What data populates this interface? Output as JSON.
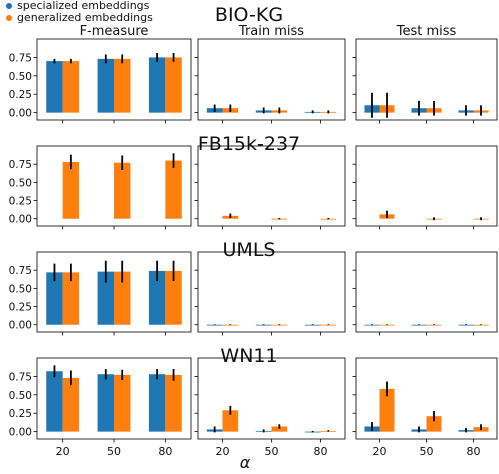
{
  "colors": {
    "specialized": "#1f77b4",
    "generalized": "#ff7f0e"
  },
  "legend": [
    {
      "label": "specialized embeddings",
      "color": "#1f77b4"
    },
    {
      "label": "generalized embeddings",
      "color": "#ff7f0e"
    }
  ],
  "col_titles": [
    "F-measure",
    "Train miss",
    "Test miss"
  ],
  "xlabel": "α",
  "chart_data": {
    "type": "bar",
    "categories": [
      "20",
      "50",
      "80"
    ],
    "ylim": [
      -0.1,
      1.0
    ],
    "yticks": [
      "0.00",
      "0.25",
      "0.50",
      "0.75"
    ],
    "grid": false,
    "legend_position": "top-left",
    "rows": [
      {
        "dataset": "BIO-KG",
        "panels": [
          {
            "metric": "F-measure",
            "series": [
              {
                "name": "specialized embeddings",
                "values": [
                  0.7,
                  0.73,
                  0.75
                ],
                "errors": [
                  0.03,
                  0.06,
                  0.06
                ]
              },
              {
                "name": "generalized embeddings",
                "values": [
                  0.7,
                  0.73,
                  0.75
                ],
                "errors": [
                  0.03,
                  0.06,
                  0.06
                ]
              }
            ]
          },
          {
            "metric": "Train miss",
            "series": [
              {
                "name": "specialized embeddings",
                "values": [
                  0.06,
                  0.03,
                  0.01
                ],
                "errors": [
                  0.05,
                  0.04,
                  0.02
                ]
              },
              {
                "name": "generalized embeddings",
                "values": [
                  0.06,
                  0.03,
                  0.01
                ],
                "errors": [
                  0.05,
                  0.04,
                  0.02
                ]
              }
            ]
          },
          {
            "metric": "Test miss",
            "series": [
              {
                "name": "specialized embeddings",
                "values": [
                  0.1,
                  0.06,
                  0.03
                ],
                "errors": [
                  0.17,
                  0.1,
                  0.07
                ]
              },
              {
                "name": "generalized embeddings",
                "values": [
                  0.1,
                  0.06,
                  0.03
                ],
                "errors": [
                  0.17,
                  0.1,
                  0.07
                ]
              }
            ]
          }
        ]
      },
      {
        "dataset": "FB15k-237",
        "panels": [
          {
            "metric": "F-measure",
            "series": [
              {
                "name": "specialized embeddings",
                "values": [
                  null,
                  null,
                  null
                ],
                "errors": [
                  0,
                  0,
                  0
                ]
              },
              {
                "name": "generalized embeddings",
                "values": [
                  0.78,
                  0.77,
                  0.8
                ],
                "errors": [
                  0.1,
                  0.1,
                  0.1
                ]
              }
            ]
          },
          {
            "metric": "Train miss",
            "series": [
              {
                "name": "specialized embeddings",
                "values": [
                  null,
                  null,
                  null
                ],
                "errors": [
                  0,
                  0,
                  0
                ]
              },
              {
                "name": "generalized embeddings",
                "values": [
                  0.04,
                  0.0,
                  0.0
                ],
                "errors": [
                  0.03,
                  0.01,
                  0.01
                ]
              }
            ]
          },
          {
            "metric": "Test miss",
            "series": [
              {
                "name": "specialized embeddings",
                "values": [
                  null,
                  null,
                  null
                ],
                "errors": [
                  0,
                  0,
                  0
                ]
              },
              {
                "name": "generalized embeddings",
                "values": [
                  0.06,
                  0.0,
                  0.0
                ],
                "errors": [
                  0.05,
                  0.02,
                  0.02
                ]
              }
            ]
          }
        ]
      },
      {
        "dataset": "UMLS",
        "panels": [
          {
            "metric": "F-measure",
            "series": [
              {
                "name": "specialized embeddings",
                "values": [
                  0.72,
                  0.73,
                  0.74
                ],
                "errors": [
                  0.12,
                  0.15,
                  0.14
                ]
              },
              {
                "name": "generalized embeddings",
                "values": [
                  0.72,
                  0.73,
                  0.74
                ],
                "errors": [
                  0.12,
                  0.15,
                  0.14
                ]
              }
            ]
          },
          {
            "metric": "Train miss",
            "series": [
              {
                "name": "specialized embeddings",
                "values": [
                  0.0,
                  0.0,
                  0.0
                ],
                "errors": [
                  0.005,
                  0.005,
                  0.005
                ]
              },
              {
                "name": "generalized embeddings",
                "values": [
                  0.0,
                  0.0,
                  0.0
                ],
                "errors": [
                  0.005,
                  0.005,
                  0.005
                ]
              }
            ]
          },
          {
            "metric": "Test miss",
            "series": [
              {
                "name": "specialized embeddings",
                "values": [
                  0.0,
                  0.0,
                  0.0
                ],
                "errors": [
                  0.005,
                  0.005,
                  0.005
                ]
              },
              {
                "name": "generalized embeddings",
                "values": [
                  0.0,
                  0.0,
                  0.0
                ],
                "errors": [
                  0.005,
                  0.005,
                  0.005
                ]
              }
            ]
          }
        ]
      },
      {
        "dataset": "WN11",
        "panels": [
          {
            "metric": "F-measure",
            "series": [
              {
                "name": "specialized embeddings",
                "values": [
                  0.82,
                  0.78,
                  0.78
                ],
                "errors": [
                  0.08,
                  0.07,
                  0.07
                ]
              },
              {
                "name": "generalized embeddings",
                "values": [
                  0.73,
                  0.77,
                  0.77
                ],
                "errors": [
                  0.1,
                  0.07,
                  0.08
                ]
              }
            ]
          },
          {
            "metric": "Train miss",
            "series": [
              {
                "name": "specialized embeddings",
                "values": [
                  0.03,
                  0.01,
                  0.0
                ],
                "errors": [
                  0.04,
                  0.02,
                  0.01
                ]
              },
              {
                "name": "generalized embeddings",
                "values": [
                  0.29,
                  0.07,
                  0.01
                ],
                "errors": [
                  0.06,
                  0.03,
                  0.01
                ]
              }
            ]
          },
          {
            "metric": "Test miss",
            "series": [
              {
                "name": "specialized embeddings",
                "values": [
                  0.07,
                  0.03,
                  0.02
                ],
                "errors": [
                  0.06,
                  0.04,
                  0.03
                ]
              },
              {
                "name": "generalized embeddings",
                "values": [
                  0.58,
                  0.21,
                  0.06
                ],
                "errors": [
                  0.1,
                  0.07,
                  0.04
                ]
              }
            ]
          }
        ]
      }
    ]
  }
}
